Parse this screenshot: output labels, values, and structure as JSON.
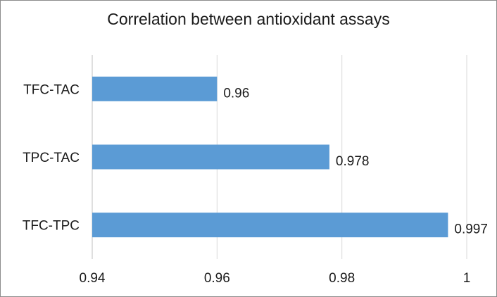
{
  "chart_data": {
    "type": "bar",
    "orientation": "horizontal",
    "title": "Correlation between antioxidant assays",
    "xlabel": "",
    "ylabel": "",
    "categories": [
      "TFC-TAC",
      "TPC-TAC",
      "TFC-TPC"
    ],
    "values": [
      0.96,
      0.978,
      0.997
    ],
    "data_labels": [
      "0.96",
      "0.978",
      "0.997"
    ],
    "xlim": [
      0.94,
      1
    ],
    "xticks": [
      0.94,
      0.96,
      0.98,
      1
    ],
    "xtick_labels": [
      "0.94",
      "0.96",
      "0.98",
      "1"
    ],
    "grid": "vertical",
    "legend": "none",
    "bar_color": "#5b9bd5",
    "grid_color": "#d9d9d9"
  }
}
